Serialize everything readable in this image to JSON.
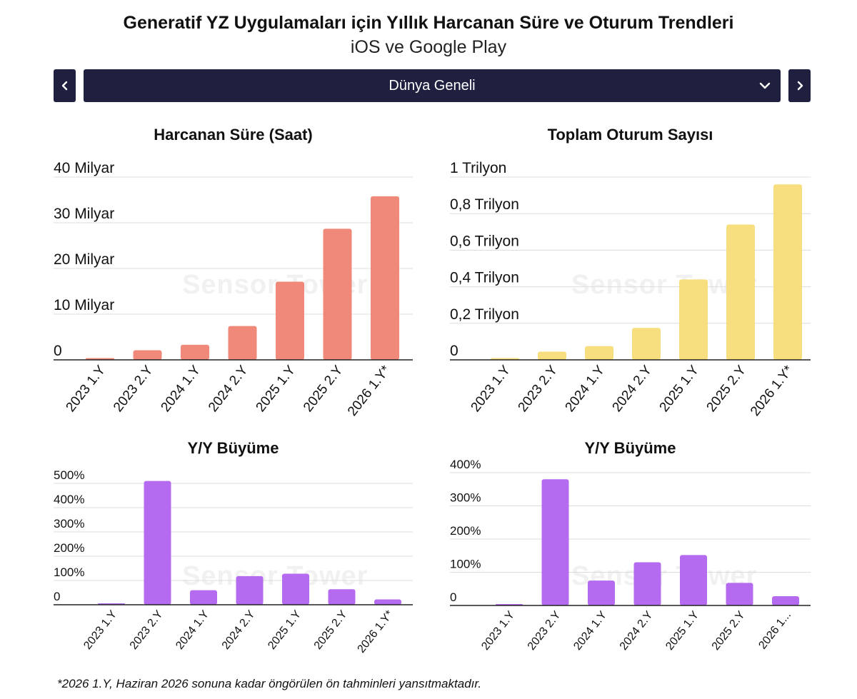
{
  "header": {
    "title": "Generatif YZ Uygulamaları için Yıllık Harcanan Süre ve Oturum Trendleri",
    "subtitle": "iOS ve Google Play"
  },
  "region_selector": {
    "selected": "Dünya Geneli",
    "prev_icon": "chevron-left-icon",
    "next_icon": "chevron-right-icon",
    "dropdown_icon": "chevron-down-icon"
  },
  "watermark": "Sensor Tower",
  "footnote": "*2026 1.Y, Haziran 2026 sonuna kadar öngörülen ön tahminleri yansıtmaktadır.",
  "chart_data": [
    {
      "id": "time",
      "type": "bar",
      "title": "Harcanan Süre (Saat)",
      "color": "#f0897a",
      "categories": [
        "2023 1.Y",
        "2023 2.Y",
        "2024 1.Y",
        "2024 2.Y",
        "2025 1.Y",
        "2025 2.Y",
        "2026 1.Y*"
      ],
      "values": [
        0.4,
        2.1,
        3.3,
        7.4,
        17.1,
        28.7,
        35.8
      ],
      "ylim": [
        0,
        40
      ],
      "yticks": [
        0,
        10,
        20,
        30,
        40
      ],
      "ytick_labels": [
        "0",
        "10 Milyar",
        "20 Milyar",
        "30 Milyar",
        "40 Milyar"
      ],
      "grid": true
    },
    {
      "id": "sessions",
      "type": "bar",
      "title": "Toplam Oturum Sayısı",
      "color": "#f7df7f",
      "categories": [
        "2023 1.Y",
        "2023 2.Y",
        "2024 1.Y",
        "2024 2.Y",
        "2025 1.Y",
        "2025 2.Y",
        "2026 1.Y*"
      ],
      "values": [
        0.01,
        0.045,
        0.075,
        0.175,
        0.44,
        0.74,
        0.96
      ],
      "ylim": [
        0,
        1
      ],
      "yticks": [
        0,
        0.2,
        0.4,
        0.6,
        0.8,
        1
      ],
      "ytick_labels": [
        "0",
        "0,2 Trilyon",
        "0,4 Trilyon",
        "0,6 Trilyon",
        "0,8 Trilyon",
        "1 Trilyon"
      ],
      "grid": true
    },
    {
      "id": "time_yoy",
      "type": "bar",
      "title": "Y/Y Büyüme",
      "color": "#b56bef",
      "categories": [
        "2023 1.Y",
        "2023 2.Y",
        "2024 1.Y",
        "2024 2.Y",
        "2025 1.Y",
        "2025 2.Y",
        "2026 1.Y*"
      ],
      "values": [
        0,
        515,
        60,
        118,
        128,
        64,
        22
      ],
      "ylim": [
        0,
        500
      ],
      "yticks": [
        0,
        100,
        200,
        300,
        400,
        500
      ],
      "ytick_labels": [
        "0",
        "100%",
        "200%",
        "300%",
        "400%",
        "500%"
      ],
      "grid": true
    },
    {
      "id": "sessions_yoy",
      "type": "bar",
      "title": "Y/Y Büyüme",
      "color": "#b56bef",
      "categories": [
        "2023 1.Y",
        "2023 2.Y",
        "2024 1.Y",
        "2024 2.Y",
        "2025 1.Y",
        "2025 2.Y",
        "2026 1..."
      ],
      "values": [
        0,
        380,
        75,
        130,
        152,
        68,
        28
      ],
      "ylim": [
        0,
        400
      ],
      "yticks": [
        0,
        100,
        200,
        300,
        400
      ],
      "ytick_labels": [
        "0",
        "100%",
        "200%",
        "300%",
        "400%"
      ],
      "grid": true
    }
  ]
}
